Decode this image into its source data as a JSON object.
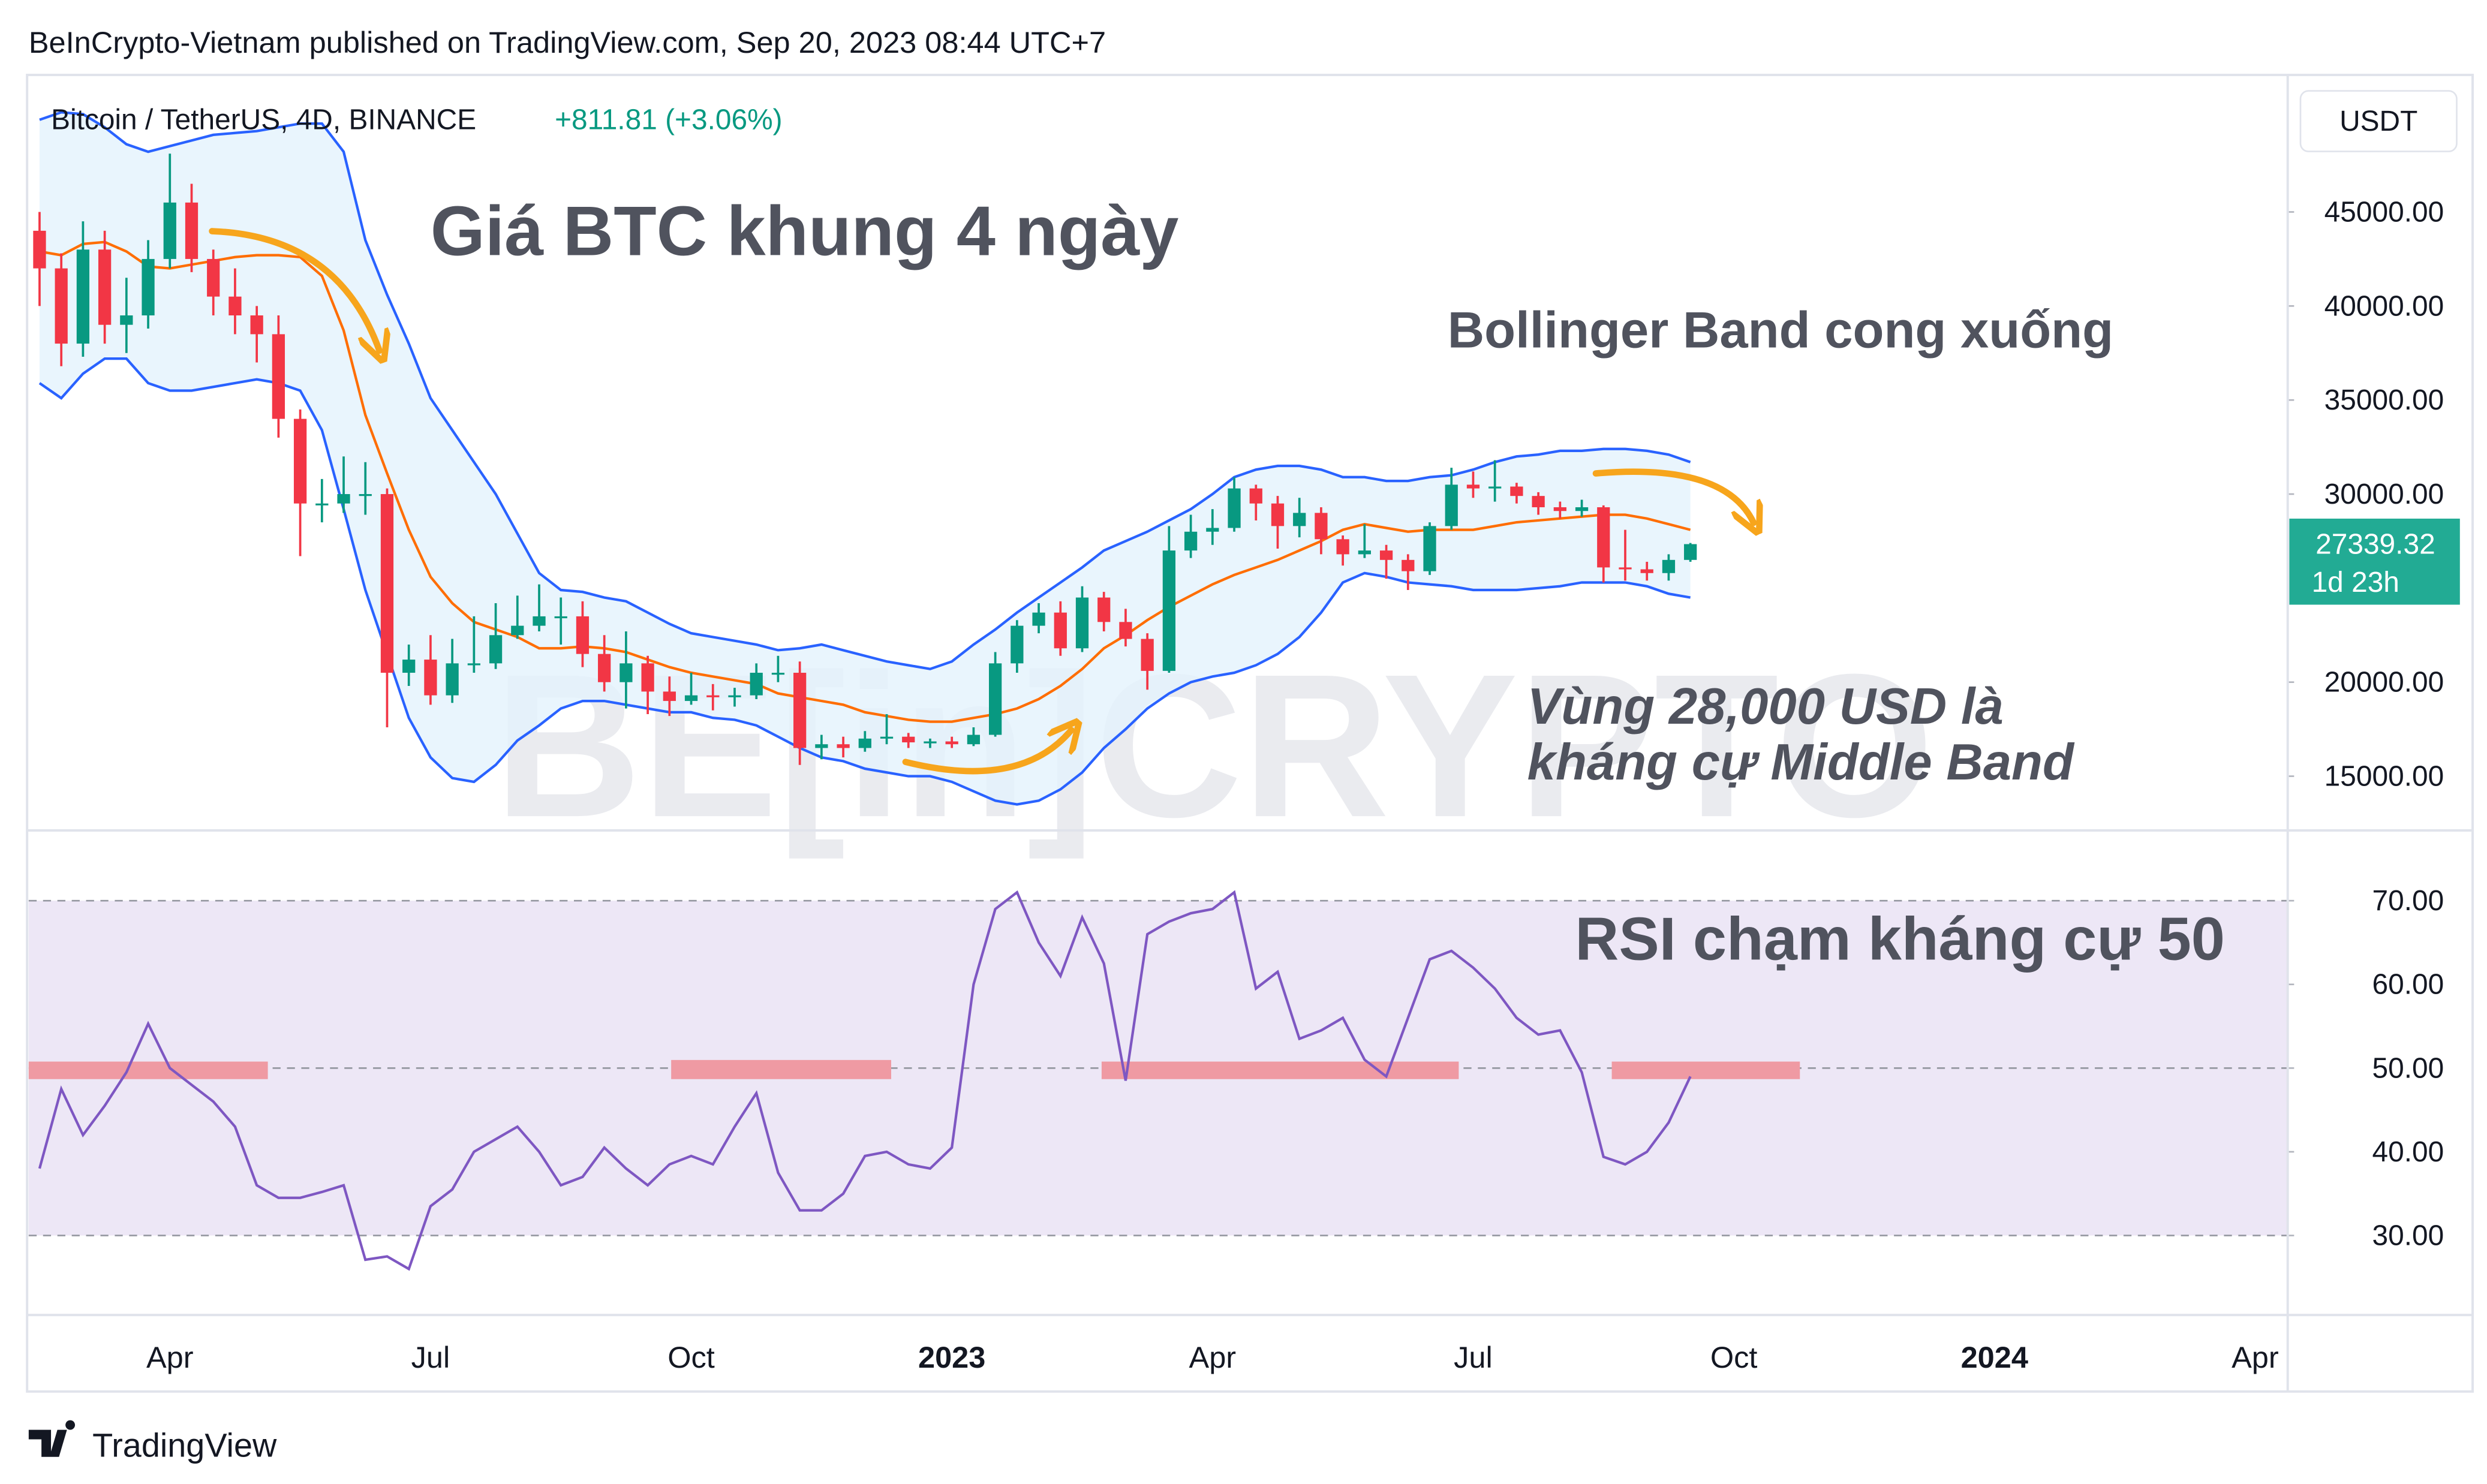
{
  "header": "BeInCrypto-Vietnam published on TradingView.com, Sep 20, 2023 08:44 UTC+7",
  "footer": "TradingView",
  "chart_data": [
    {
      "type": "candlestick",
      "title": "Bitcoin / TetherUS, 4D, BINANCE",
      "change": "+811.81 (+3.06%)",
      "currency": "USDT",
      "up_color": "#089981",
      "down_color": "#f23645",
      "open": [
        44000,
        42000,
        38000,
        43000,
        39000,
        39500,
        42500,
        45500,
        42500,
        40500,
        39500,
        38500,
        34000,
        29500,
        29500,
        30000,
        30000,
        20500,
        21200,
        19300,
        21000,
        21000,
        22500,
        23000,
        23500,
        23500,
        21500,
        20000,
        21000,
        19500,
        19000,
        19300,
        19200,
        19300,
        20500,
        20500,
        16500,
        16700,
        16500,
        17000,
        17100,
        16800,
        16850,
        16700,
        17200,
        21000,
        23000,
        23700,
        21800,
        24500,
        23200,
        22300,
        20600,
        27000,
        28000,
        28200,
        30300,
        29500,
        28300,
        29000,
        27600,
        26800,
        27000,
        26500,
        25900,
        28300,
        30500,
        30300,
        30400,
        29900,
        29300,
        29100,
        29300,
        26100,
        26000,
        25800,
        26500
      ],
      "high": [
        45000,
        42800,
        44500,
        44000,
        41500,
        43500,
        48100,
        46500,
        43000,
        42000,
        40000,
        39500,
        34500,
        30800,
        32000,
        31700,
        30300,
        22000,
        22500,
        22300,
        23500,
        24200,
        24600,
        25200,
        24500,
        24300,
        22500,
        22700,
        21400,
        20300,
        20500,
        19900,
        19700,
        21000,
        21400,
        21100,
        17200,
        17100,
        17400,
        18300,
        17300,
        17000,
        17100,
        17600,
        21600,
        23300,
        24200,
        24300,
        25100,
        24800,
        23900,
        22600,
        28300,
        28900,
        29200,
        30900,
        30500,
        29900,
        29800,
        29300,
        27800,
        28400,
        27300,
        26800,
        28500,
        31400,
        31200,
        31800,
        30600,
        30100,
        29600,
        29700,
        29400,
        28100,
        26400,
        26800,
        27400
      ],
      "low": [
        40000,
        36800,
        37300,
        38000,
        37500,
        38800,
        42000,
        41800,
        39500,
        38500,
        37000,
        33000,
        26700,
        28500,
        29000,
        28900,
        17600,
        19800,
        18800,
        18900,
        20500,
        20700,
        22300,
        22700,
        22000,
        20800,
        19500,
        18600,
        18300,
        18200,
        18800,
        18500,
        18700,
        19100,
        20000,
        15600,
        15900,
        16000,
        16300,
        16700,
        16500,
        16500,
        16500,
        16600,
        17100,
        20500,
        22600,
        21400,
        21600,
        22700,
        21900,
        19600,
        20500,
        26600,
        27300,
        28000,
        28600,
        27100,
        27700,
        26800,
        26200,
        26600,
        25500,
        24900,
        25700,
        28100,
        29800,
        29600,
        29500,
        28900,
        28700,
        28800,
        25300,
        25400,
        25400,
        25400,
        26400
      ],
      "close": [
        42000,
        38000,
        43000,
        39000,
        39500,
        42500,
        45500,
        42500,
        40500,
        39500,
        38500,
        34000,
        29500,
        29500,
        30000,
        30000,
        20500,
        21200,
        19300,
        21000,
        21000,
        22500,
        23000,
        23500,
        23500,
        21500,
        20000,
        21000,
        19500,
        19000,
        19300,
        19200,
        19300,
        20500,
        20500,
        16500,
        16700,
        16500,
        17000,
        17100,
        16800,
        16850,
        16700,
        17200,
        21000,
        23000,
        23700,
        21800,
        24500,
        23200,
        22300,
        20600,
        27000,
        28000,
        28200,
        30300,
        29500,
        28300,
        29000,
        27600,
        26800,
        27000,
        26500,
        25900,
        28300,
        30500,
        30300,
        30400,
        29900,
        29300,
        29100,
        29300,
        26100,
        26000,
        25800,
        26500,
        27339.32
      ],
      "series": [
        {
          "color": "#2962ff",
          "values": [
            49900,
            50300,
            50200,
            49500,
            48600,
            48200,
            48500,
            48800,
            49100,
            49200,
            49300,
            49500,
            49700,
            49700,
            48200,
            43500,
            40600,
            38000,
            35100,
            33400,
            31700,
            30000,
            27900,
            25800,
            24900,
            24800,
            24500,
            24300,
            23700,
            23100,
            22600,
            22400,
            22200,
            22000,
            21700,
            21800,
            22000,
            21700,
            21400,
            21100,
            20900,
            20700,
            21100,
            22000,
            22800,
            23700,
            24500,
            25300,
            26100,
            27000,
            27500,
            28000,
            28600,
            29200,
            30000,
            30900,
            31300,
            31500,
            31500,
            31300,
            30900,
            30900,
            30700,
            30700,
            30900,
            31000,
            31300,
            31700,
            32000,
            32100,
            32300,
            32300,
            32400,
            32400,
            32300,
            32100,
            31700
          ]
        },
        {
          "color": "#ff6d00",
          "values": [
            42900,
            42700,
            43300,
            43400,
            42900,
            42100,
            42000,
            42200,
            42400,
            42600,
            42700,
            42700,
            42600,
            41600,
            38700,
            34200,
            31100,
            28100,
            25600,
            24200,
            23200,
            22800,
            22400,
            21800,
            21800,
            21900,
            21800,
            21600,
            21200,
            20800,
            20500,
            20300,
            20100,
            19900,
            19400,
            19200,
            19000,
            18800,
            18400,
            18200,
            18000,
            17900,
            17900,
            18100,
            18300,
            18600,
            19100,
            19800,
            20700,
            21800,
            22500,
            23300,
            24000,
            24600,
            25200,
            25700,
            26100,
            26500,
            27000,
            27500,
            28100,
            28400,
            28200,
            28000,
            28100,
            28100,
            28100,
            28300,
            28500,
            28600,
            28700,
            28800,
            28900,
            28900,
            28700,
            28400,
            28100
          ]
        },
        {
          "color": "#2962ff",
          "values": [
            35900,
            35100,
            36400,
            37200,
            37200,
            35900,
            35500,
            35500,
            35700,
            35900,
            36100,
            35900,
            35500,
            33400,
            29200,
            24900,
            21500,
            18100,
            16000,
            14900,
            14700,
            15600,
            16900,
            17700,
            18600,
            19000,
            19000,
            18800,
            18600,
            18400,
            18400,
            18100,
            18000,
            17700,
            17100,
            16500,
            16000,
            15800,
            15400,
            15200,
            15000,
            15000,
            14700,
            14200,
            13700,
            13500,
            13700,
            14300,
            15200,
            16500,
            17500,
            18600,
            19400,
            20000,
            20300,
            20500,
            20900,
            21500,
            22400,
            23700,
            25300,
            25800,
            25600,
            25300,
            25200,
            25100,
            24900,
            24900,
            24900,
            25000,
            25100,
            25300,
            25300,
            25300,
            25100,
            24700,
            24500
          ]
        }
      ],
      "band_fill": "#e3f2fd",
      "ylim": [
        12200,
        52200
      ],
      "yticks": [
        {
          "value": 15000,
          "label": "15000.00"
        },
        {
          "value": 20000,
          "label": "20000.00"
        },
        {
          "value": 30000,
          "label": "30000.00"
        },
        {
          "value": 35000,
          "label": "35000.00"
        },
        {
          "value": 40000,
          "label": "40000.00"
        },
        {
          "value": 45000,
          "label": "45000.00"
        }
      ],
      "last_price": 27339.32,
      "last_price_color": "#22ab94",
      "countdown": "1d 23h",
      "annotations": [
        "Giá BTC khung 4 ngày",
        "Bollinger Band cong xuống",
        "Vùng 28,000 USD là",
        "kháng cự Middle Band"
      ],
      "watermark": "BE[in]CRYPTO"
    },
    {
      "type": "line",
      "categories": [
        null,
        null,
        null,
        null,
        null,
        null,
        "Apr",
        null,
        null,
        null,
        null,
        null,
        null,
        null,
        null,
        null,
        null,
        null,
        "Jul",
        null,
        null,
        null,
        null,
        null,
        null,
        null,
        null,
        null,
        null,
        null,
        "Oct",
        null,
        null,
        null,
        null,
        null,
        null,
        null,
        null,
        null,
        null,
        null,
        "2023",
        null,
        null,
        null,
        null,
        null,
        null,
        null,
        null,
        null,
        null,
        null,
        "Apr",
        null,
        null,
        null,
        null,
        null,
        null,
        null,
        null,
        null,
        null,
        null,
        "Jul",
        null,
        null,
        null,
        null,
        null,
        null,
        null,
        null,
        null,
        null,
        null,
        "Oct",
        null,
        null,
        null,
        null,
        null,
        null,
        null,
        null,
        null,
        null,
        null,
        "2024",
        null,
        null,
        null,
        null,
        null,
        null,
        null,
        null,
        null,
        null,
        null,
        "Apr",
        null
      ],
      "series": [
        {
          "color": "#7e57c2",
          "values": [
            38,
            47.5,
            42,
            45.5,
            49.5,
            55.3,
            50,
            48,
            46,
            43,
            36,
            34.5,
            34.5,
            35.2,
            36,
            27.1,
            27.5,
            26,
            33.5,
            35.5,
            40,
            41.5,
            43,
            40,
            36,
            37,
            40.5,
            38,
            36,
            38.5,
            39.5,
            38.5,
            43,
            47,
            37.5,
            33,
            33,
            35,
            39.5,
            40,
            38.5,
            38,
            40.5,
            60,
            69,
            71,
            65,
            61,
            68,
            62.5,
            48.5,
            66,
            67.5,
            68.5,
            69,
            71,
            59.5,
            61.5,
            53.5,
            54.5,
            56,
            51,
            49,
            56,
            63,
            64,
            62,
            59.5,
            56,
            54,
            54.5,
            49.5,
            39.4,
            38.5,
            40,
            43.5,
            49,
            null,
            null,
            null,
            null,
            null,
            null,
            null,
            null,
            null,
            null,
            null,
            null,
            null,
            null,
            null,
            null,
            null,
            null,
            null,
            null,
            null,
            null,
            null,
            null,
            null,
            null,
            null
          ]
        }
      ],
      "ylim": [
        20.5,
        78.2
      ],
      "yticks": [
        {
          "value": 30,
          "label": "30.00"
        },
        {
          "value": 40,
          "label": "40.00"
        },
        {
          "value": 50,
          "label": "50.00"
        },
        {
          "value": 60,
          "label": "60.00"
        },
        {
          "value": 70,
          "label": "70.00"
        }
      ],
      "levels": [
        30,
        50,
        70
      ],
      "band_color": "#ede7f6",
      "annotations": [
        "RSI chạm kháng cự 50"
      ]
    }
  ]
}
